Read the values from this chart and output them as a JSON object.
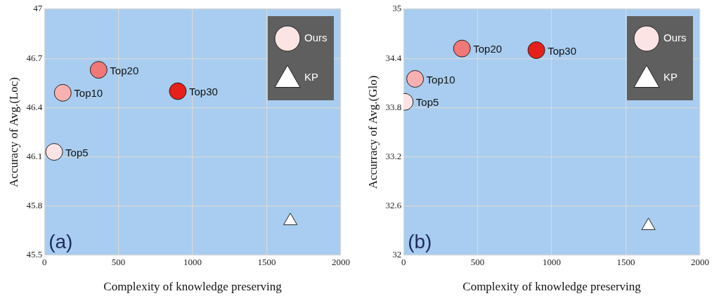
{
  "chart_data": [
    {
      "type": "scatter",
      "xlabel": "Complexity of knowledge preserving",
      "ylabel": "Accuracy of Avg.(Loc)",
      "xlim": [
        0,
        2000
      ],
      "xticks": [
        0,
        500,
        1000,
        1500,
        2000
      ],
      "ylim": [
        45.5,
        47
      ],
      "yticks": [
        45.5,
        45.8,
        46.1,
        46.4,
        46.7,
        47
      ],
      "grid": true,
      "legend": "top right",
      "series": [
        {
          "name": "Ours",
          "marker": "circle",
          "color": "#fde4e4",
          "colors": [
            "#fde4e4",
            "#f8b0b0",
            "#f17878",
            "#e6201a"
          ],
          "x": [
            66,
            124,
            366,
            900
          ],
          "values": [
            46.13,
            46.49,
            46.63,
            46.5
          ]
        },
        {
          "name": "KP",
          "marker": "triangle",
          "color": "#ffffff",
          "x": [
            1659
          ],
          "values": [
            45.71
          ]
        }
      ],
      "annotations": [
        "(a)",
        {
          "text": "Top5",
          "x": 66,
          "y": 46.13
        },
        {
          "text": "Top10",
          "x": 124,
          "y": 46.49
        },
        {
          "text": "Top20",
          "x": 366,
          "y": 46.63
        },
        {
          "text": "Top30",
          "x": 900,
          "y": 46.5
        }
      ]
    },
    {
      "type": "scatter",
      "xlabel": "Complexity of knowledge preserving",
      "ylabel": "Accurracy of Avg.(Glo)",
      "xlim": [
        0,
        2000
      ],
      "xticks": [
        0,
        500,
        1000,
        1500,
        2000
      ],
      "ylim": [
        32,
        35
      ],
      "yticks": [
        32,
        32.6,
        33.2,
        33.8,
        34.4,
        35
      ],
      "grid": true,
      "legend": "top right",
      "series": [
        {
          "name": "Ours",
          "marker": "circle",
          "color": "#fde4e4",
          "colors": [
            "#fde4e4",
            "#f8b0b0",
            "#f17878",
            "#e6201a"
          ],
          "x": [
            8,
            78,
            394,
            896
          ],
          "values": [
            33.87,
            34.15,
            34.52,
            34.5
          ]
        },
        {
          "name": "KP",
          "marker": "triangle",
          "color": "#ffffff",
          "x": [
            1652
          ],
          "values": [
            32.36
          ]
        }
      ],
      "annotations": [
        "(b)",
        {
          "text": "Top5",
          "x": 8,
          "y": 33.87
        },
        {
          "text": "Top10",
          "x": 78,
          "y": 34.15
        },
        {
          "text": "Top20",
          "x": 394,
          "y": 34.52
        },
        {
          "text": "Top30",
          "x": 896,
          "y": 34.5
        }
      ]
    }
  ]
}
